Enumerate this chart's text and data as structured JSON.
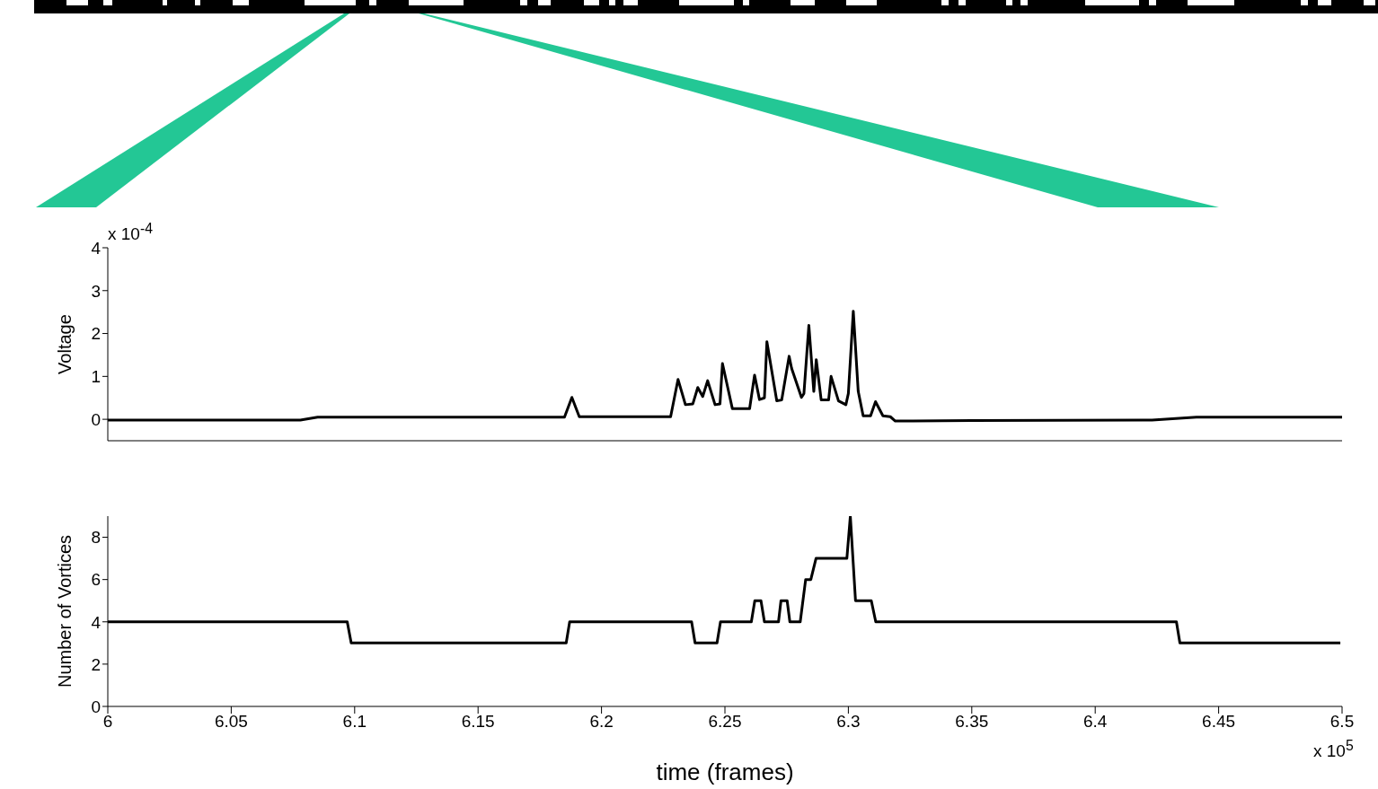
{
  "chart_data": [
    {
      "type": "line",
      "ylabel": "Voltage",
      "color": "#000000",
      "xlim": [
        6,
        6.5
      ],
      "ylim": [
        -0.5,
        4
      ],
      "yticks": [
        0,
        1,
        2,
        3,
        4
      ],
      "tick_labels": "y",
      "annotations": [
        "x 10$^{-4}$"
      ],
      "x": [
        6.0,
        6.078,
        6.085,
        6.185,
        6.188,
        6.191,
        6.228,
        6.231,
        6.234,
        6.237,
        6.239,
        6.241,
        6.243,
        6.246,
        6.248,
        6.249,
        6.253,
        6.26,
        6.262,
        6.264,
        6.266,
        6.267,
        6.271,
        6.273,
        6.276,
        6.277,
        6.281,
        6.282,
        6.284,
        6.286,
        6.287,
        6.289,
        6.292,
        6.293,
        6.296,
        6.299,
        6.3,
        6.302,
        6.304,
        6.306,
        6.309,
        6.311,
        6.314,
        6.317,
        6.319,
        6.35,
        6.423,
        6.441,
        6.5
      ],
      "values": [
        -0.02,
        -0.02,
        0.05,
        0.05,
        0.51,
        0.06,
        0.06,
        0.93,
        0.34,
        0.36,
        0.74,
        0.53,
        0.9,
        0.34,
        0.36,
        1.3,
        0.25,
        0.25,
        1.03,
        0.46,
        0.5,
        1.81,
        0.43,
        0.45,
        1.47,
        1.19,
        0.51,
        0.6,
        2.19,
        0.65,
        1.39,
        0.45,
        0.45,
        1.0,
        0.43,
        0.34,
        0.6,
        2.52,
        0.65,
        0.08,
        0.08,
        0.41,
        0.08,
        0.06,
        -0.04,
        -0.03,
        -0.02,
        0.05,
        0.05
      ]
    },
    {
      "type": "line",
      "ylabel": "Number of Vortices",
      "xlabel": "time (frames)",
      "color": "#000000",
      "xlim": [
        6,
        6.5
      ],
      "xticks": [
        6,
        6.05,
        6.1,
        6.15,
        6.2,
        6.25,
        6.3,
        6.35,
        6.4,
        6.45,
        6.5
      ],
      "ylim": [
        0,
        9
      ],
      "yticks": [
        0,
        2,
        4,
        6,
        8
      ],
      "annotations": [
        "x 10$^{5}$"
      ],
      "x": [
        6.0,
        6.097,
        6.0986,
        6.1857,
        6.1871,
        6.2365,
        6.2379,
        6.2468,
        6.2482,
        6.2607,
        6.2621,
        6.2646,
        6.266,
        6.2717,
        6.2727,
        6.2752,
        6.2763,
        6.2805,
        6.2827,
        6.2848,
        6.2869,
        6.2994,
        6.3008,
        6.3029,
        6.3093,
        6.3111,
        6.4329,
        6.4343,
        6.4993
      ],
      "values": [
        4,
        4,
        3,
        3,
        4,
        4,
        3,
        3,
        4,
        4,
        5,
        5,
        4,
        4,
        5,
        5,
        4,
        4,
        6,
        6,
        7,
        7,
        9,
        5,
        5,
        4,
        4,
        3,
        3
      ]
    }
  ]
}
